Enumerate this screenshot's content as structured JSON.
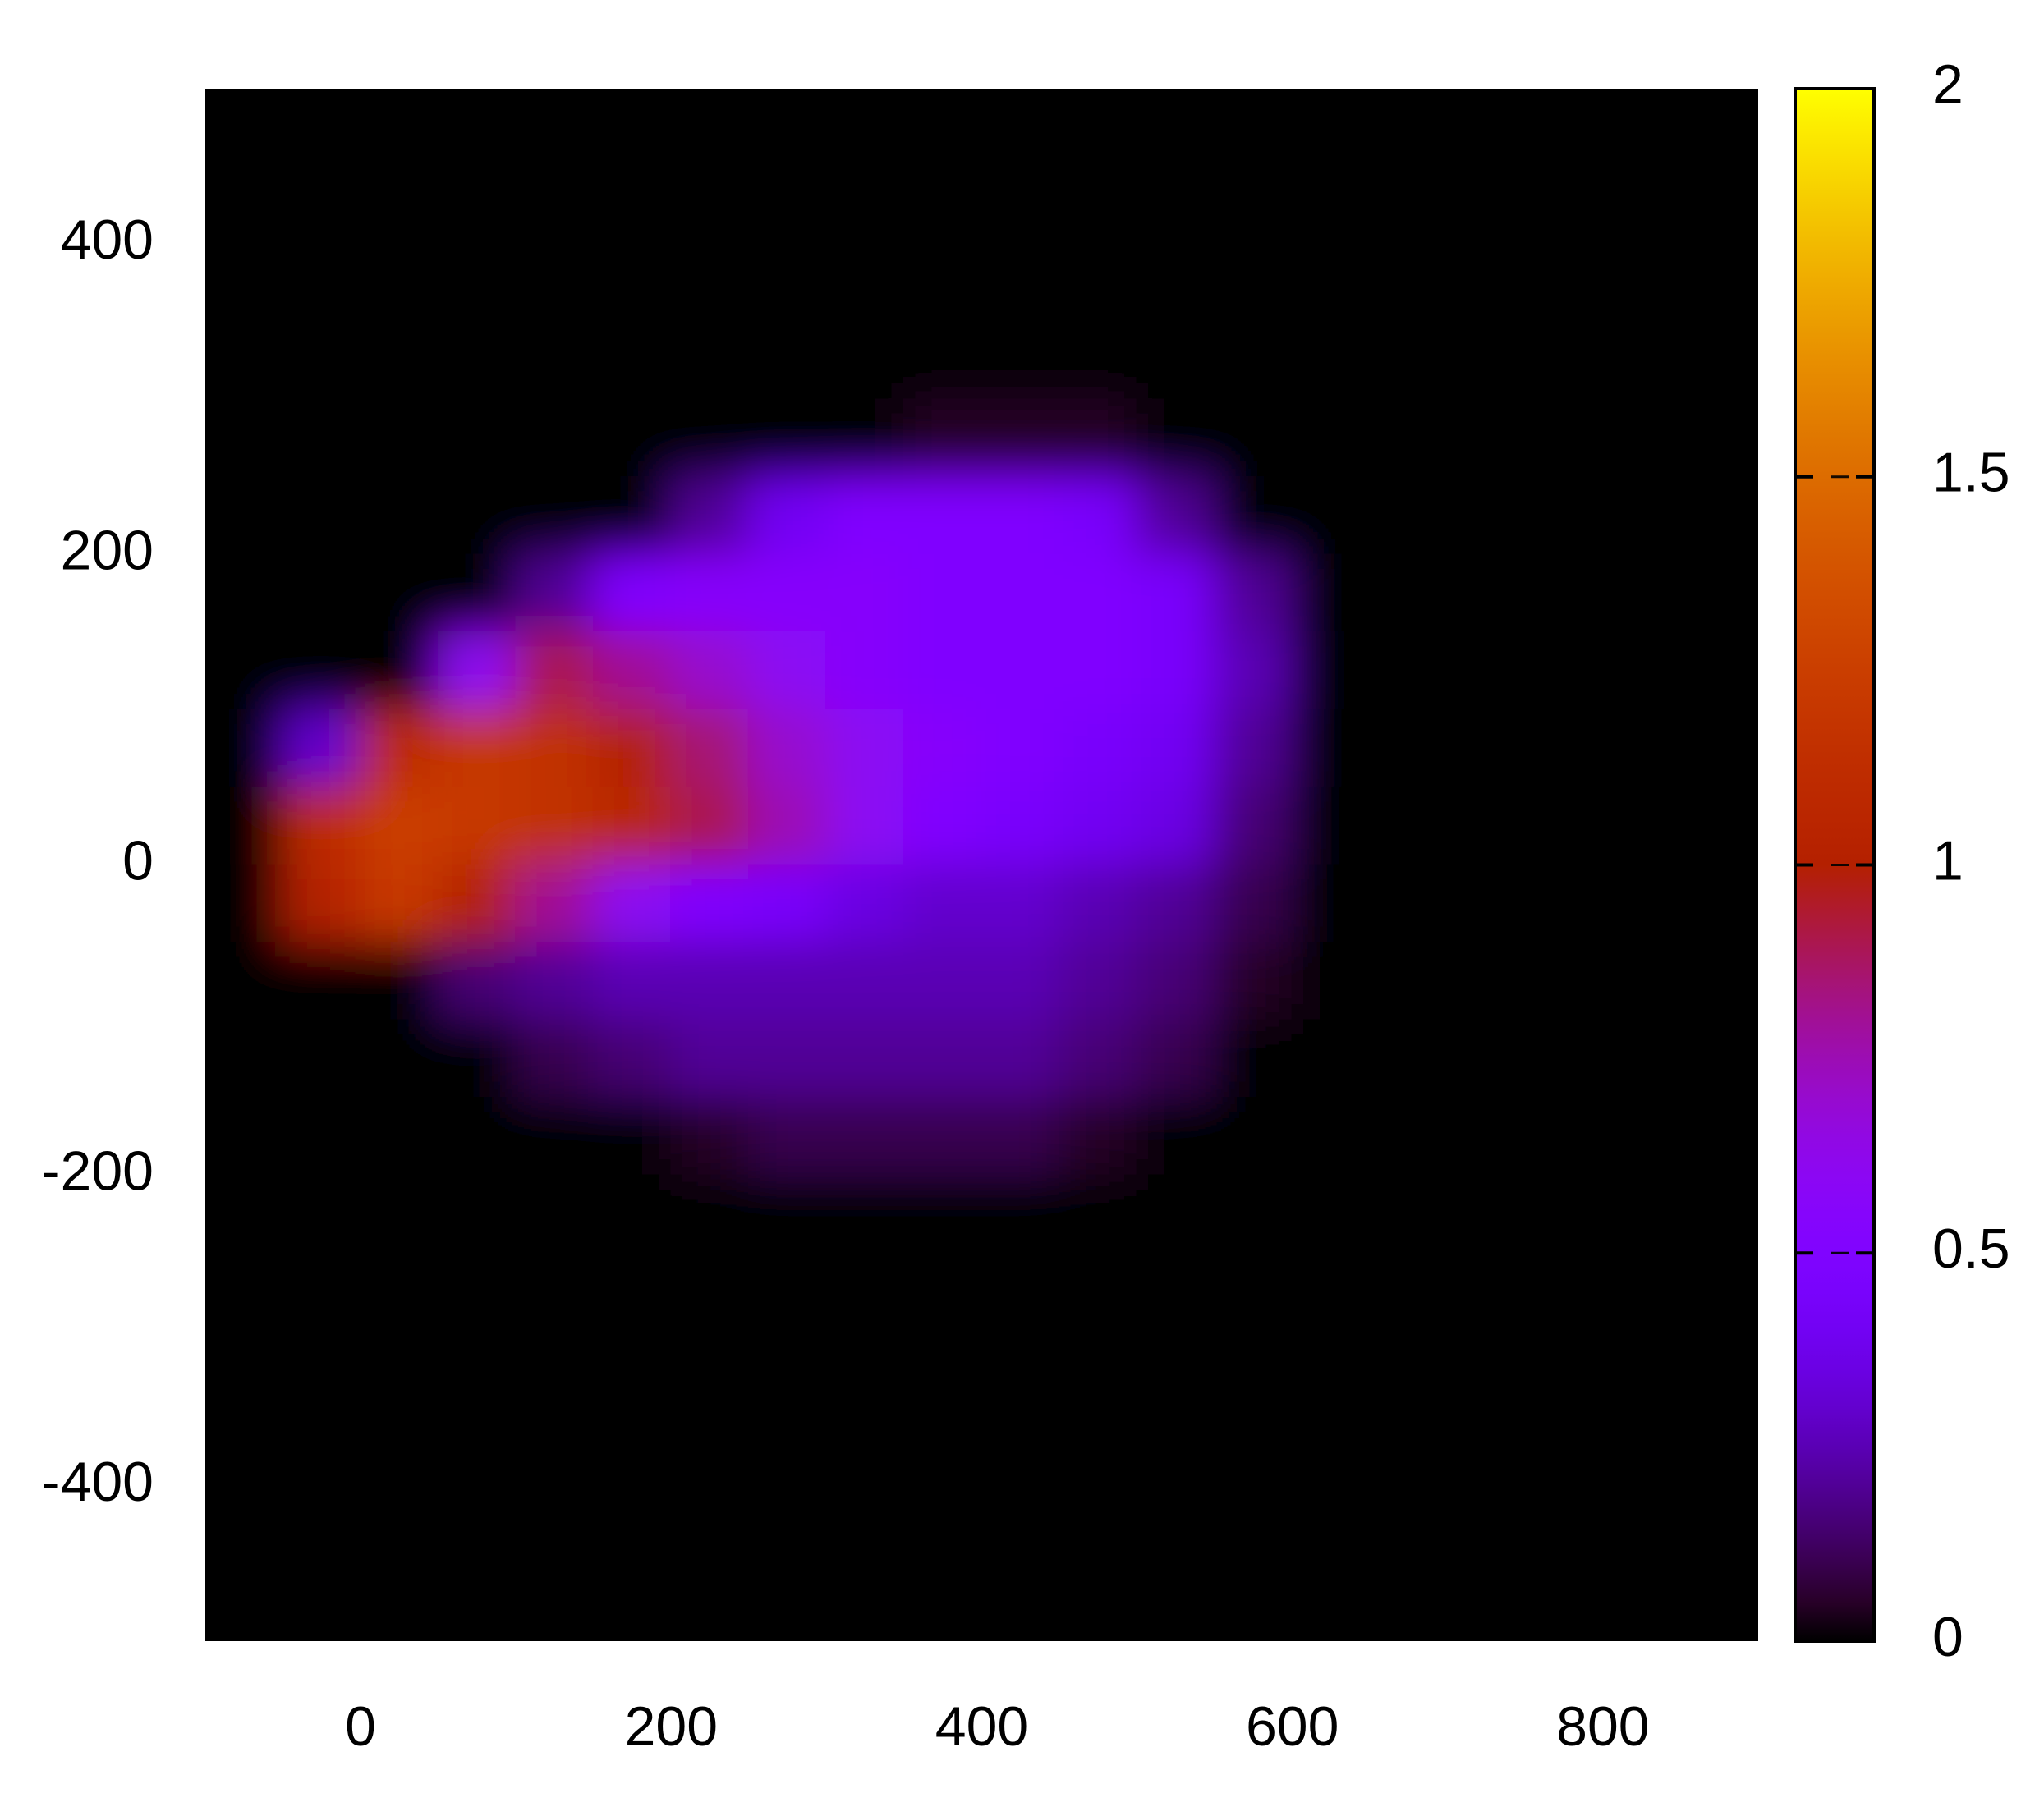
{
  "chart_data": {
    "type": "heatmap",
    "x": [
      -75,
      -25,
      25,
      75,
      125,
      175,
      225,
      275,
      325,
      375,
      425,
      475,
      525,
      575,
      625,
      675,
      725,
      775,
      825,
      875
    ],
    "y": [
      475,
      425,
      375,
      325,
      275,
      225,
      175,
      125,
      75,
      25,
      -25,
      -75,
      -125,
      -175,
      -225,
      -275,
      -325,
      -375,
      -425,
      -475
    ],
    "z": [
      [
        0,
        0,
        0,
        0,
        0,
        0,
        0,
        0,
        0,
        0,
        0,
        0,
        0,
        0,
        0,
        0,
        0,
        0,
        0,
        0
      ],
      [
        0,
        0,
        0,
        0,
        0,
        0,
        0,
        0,
        0,
        0,
        0,
        0,
        0,
        0,
        0,
        0,
        0,
        0,
        0,
        0
      ],
      [
        0,
        0,
        0,
        0,
        0,
        0,
        0,
        0,
        0,
        0,
        0,
        0,
        0,
        0,
        0,
        0,
        0,
        0,
        0,
        0
      ],
      [
        0,
        0,
        0,
        0,
        0,
        0,
        0,
        0,
        0,
        0,
        0,
        0,
        0,
        0,
        0,
        0,
        0,
        0,
        0,
        0
      ],
      [
        0,
        0,
        0,
        0,
        0,
        0,
        0,
        0,
        0,
        0.05,
        0.05,
        0.05,
        0,
        0,
        0,
        0,
        0,
        0,
        0,
        0
      ],
      [
        0,
        0,
        0,
        0,
        0,
        0,
        0.2,
        0.4,
        0.5,
        0.5,
        0.5,
        0.45,
        0.2,
        0,
        0,
        0,
        0,
        0,
        0,
        0
      ],
      [
        0,
        0,
        0,
        0,
        0.2,
        0.5,
        0.55,
        0.55,
        0.55,
        0.5,
        0.5,
        0.5,
        0.45,
        0.2,
        0,
        0,
        0,
        0,
        0,
        0
      ],
      [
        0,
        0,
        0,
        0.6,
        0.9,
        0.8,
        0.7,
        0.6,
        0.55,
        0.5,
        0.5,
        0.5,
        0.45,
        0.25,
        0,
        0,
        0,
        0,
        0,
        0
      ],
      [
        0,
        0.3,
        1.1,
        1.2,
        1.15,
        1.0,
        0.85,
        0.7,
        0.6,
        0.55,
        0.5,
        0.45,
        0.4,
        0.2,
        0,
        0,
        0,
        0,
        0,
        0
      ],
      [
        0,
        1.1,
        1.25,
        1.2,
        1.15,
        1.05,
        0.9,
        0.75,
        0.6,
        0.5,
        0.45,
        0.4,
        0.35,
        0.15,
        0,
        0,
        0,
        0,
        0,
        0
      ],
      [
        0,
        1.0,
        1.2,
        1.0,
        0.8,
        0.6,
        0.5,
        0.45,
        0.35,
        0.3,
        0.3,
        0.25,
        0.2,
        0.1,
        0,
        0,
        0,
        0,
        0,
        0
      ],
      [
        0,
        0,
        0,
        0.15,
        0.2,
        0.25,
        0.25,
        0.25,
        0.25,
        0.25,
        0.25,
        0.2,
        0.15,
        0.05,
        0,
        0,
        0,
        0,
        0,
        0
      ],
      [
        0,
        0,
        0,
        0,
        0.1,
        0.15,
        0.2,
        0.2,
        0.2,
        0.2,
        0.2,
        0.15,
        0.1,
        0,
        0,
        0,
        0,
        0,
        0,
        0
      ],
      [
        0,
        0,
        0,
        0,
        0,
        0,
        0.05,
        0.1,
        0.1,
        0.1,
        0.1,
        0.05,
        0,
        0,
        0,
        0,
        0,
        0,
        0,
        0
      ],
      [
        0,
        0,
        0,
        0,
        0,
        0,
        0,
        0,
        0,
        0,
        0,
        0,
        0,
        0,
        0,
        0,
        0,
        0,
        0,
        0
      ],
      [
        0,
        0,
        0,
        0,
        0,
        0,
        0,
        0,
        0,
        0,
        0,
        0,
        0,
        0,
        0,
        0,
        0,
        0,
        0,
        0
      ],
      [
        0,
        0,
        0,
        0,
        0,
        0,
        0,
        0,
        0,
        0,
        0,
        0,
        0,
        0,
        0,
        0,
        0,
        0,
        0,
        0
      ],
      [
        0,
        0,
        0,
        0,
        0,
        0,
        0,
        0,
        0,
        0,
        0,
        0,
        0,
        0,
        0,
        0,
        0,
        0,
        0,
        0
      ],
      [
        0,
        0,
        0,
        0,
        0,
        0,
        0,
        0,
        0,
        0,
        0,
        0,
        0,
        0,
        0,
        0,
        0,
        0,
        0,
        0
      ],
      [
        0,
        0,
        0,
        0,
        0,
        0,
        0,
        0,
        0,
        0,
        0,
        0,
        0,
        0,
        0,
        0,
        0,
        0,
        0,
        0
      ]
    ],
    "xlim": [
      -100,
      900
    ],
    "ylim": [
      -500,
      500
    ],
    "xticks": [
      0,
      200,
      400,
      600,
      800
    ],
    "yticks": [
      -400,
      -200,
      0,
      200,
      400
    ],
    "zlim": [
      0,
      2
    ],
    "zticks": [
      0,
      0.5,
      1,
      1.5,
      2
    ],
    "colormap": "gnuplot"
  }
}
